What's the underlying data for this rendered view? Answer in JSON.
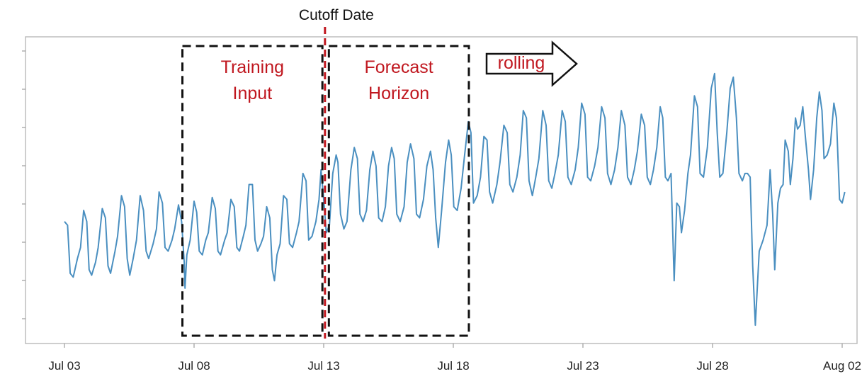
{
  "chart_data": {
    "type": "line",
    "title": "",
    "xlabel": "",
    "ylabel": "",
    "x_ticks": [
      "Jul 03",
      "Jul 08",
      "Jul 13",
      "Jul 18",
      "Jul 23",
      "Jul 28",
      "Aug 02"
    ],
    "x_range": [
      "Jul 03",
      "Aug 02"
    ],
    "y_range": [
      0,
      8
    ],
    "y_tick_labels_shown": false,
    "grid": false,
    "line_color": "#4a8fc0",
    "accent_color": "#c0171f",
    "annotations": {
      "cutoff_label": "Cutoff Date",
      "cutoff_x": 10.05,
      "training_box": {
        "label_line1": "Training",
        "label_line2": "Input",
        "x_start": 4.55,
        "x_end": 9.95
      },
      "forecast_box": {
        "label_line1": "Forecast",
        "label_line2": "Horizon",
        "x_start": 10.2,
        "x_end": 15.6
      },
      "rolling_label": "rolling"
    },
    "series": [
      {
        "values": [
          [
            0.0,
            3.2
          ],
          [
            0.12,
            3.1
          ],
          [
            0.22,
            1.8
          ],
          [
            0.34,
            1.7
          ],
          [
            0.5,
            2.2
          ],
          [
            0.62,
            2.5
          ],
          [
            0.74,
            3.5
          ],
          [
            0.86,
            3.2
          ],
          [
            0.95,
            1.9
          ],
          [
            1.05,
            1.75
          ],
          [
            1.2,
            2.1
          ],
          [
            1.3,
            2.5
          ],
          [
            1.46,
            3.55
          ],
          [
            1.58,
            3.3
          ],
          [
            1.68,
            2.0
          ],
          [
            1.78,
            1.8
          ],
          [
            1.95,
            2.4
          ],
          [
            2.05,
            2.8
          ],
          [
            2.2,
            3.9
          ],
          [
            2.32,
            3.6
          ],
          [
            2.42,
            2.2
          ],
          [
            2.52,
            1.75
          ],
          [
            2.65,
            2.2
          ],
          [
            2.78,
            2.7
          ],
          [
            2.92,
            3.9
          ],
          [
            3.05,
            3.5
          ],
          [
            3.15,
            2.4
          ],
          [
            3.25,
            2.2
          ],
          [
            3.42,
            2.6
          ],
          [
            3.55,
            3.0
          ],
          [
            3.65,
            4.0
          ],
          [
            3.78,
            3.7
          ],
          [
            3.88,
            2.5
          ],
          [
            4.0,
            2.4
          ],
          [
            4.15,
            2.7
          ],
          [
            4.25,
            3.0
          ],
          [
            4.4,
            3.65
          ],
          [
            4.52,
            3.2
          ],
          [
            4.62,
            2.1
          ],
          [
            4.65,
            1.4
          ],
          [
            4.72,
            2.3
          ],
          [
            4.85,
            2.7
          ],
          [
            5.0,
            3.75
          ],
          [
            5.1,
            3.45
          ],
          [
            5.2,
            2.4
          ],
          [
            5.32,
            2.3
          ],
          [
            5.45,
            2.7
          ],
          [
            5.55,
            2.9
          ],
          [
            5.7,
            3.85
          ],
          [
            5.82,
            3.55
          ],
          [
            5.92,
            2.4
          ],
          [
            6.02,
            2.3
          ],
          [
            6.18,
            2.7
          ],
          [
            6.28,
            2.9
          ],
          [
            6.42,
            3.8
          ],
          [
            6.55,
            3.6
          ],
          [
            6.65,
            2.5
          ],
          [
            6.75,
            2.4
          ],
          [
            6.9,
            2.8
          ],
          [
            7.0,
            3.1
          ],
          [
            7.12,
            4.2
          ],
          [
            7.25,
            4.2
          ],
          [
            7.35,
            2.7
          ],
          [
            7.45,
            2.4
          ],
          [
            7.58,
            2.6
          ],
          [
            7.68,
            2.8
          ],
          [
            7.8,
            3.6
          ],
          [
            7.92,
            3.3
          ],
          [
            8.02,
            1.9
          ],
          [
            8.1,
            1.6
          ],
          [
            8.2,
            2.3
          ],
          [
            8.32,
            2.6
          ],
          [
            8.45,
            3.9
          ],
          [
            8.58,
            3.8
          ],
          [
            8.68,
            2.6
          ],
          [
            8.8,
            2.5
          ],
          [
            8.95,
            2.9
          ],
          [
            9.05,
            3.2
          ],
          [
            9.2,
            4.5
          ],
          [
            9.32,
            4.3
          ],
          [
            9.42,
            2.7
          ],
          [
            9.55,
            2.8
          ],
          [
            9.7,
            3.2
          ],
          [
            9.82,
            3.8
          ],
          [
            9.9,
            4.6
          ],
          [
            10.0,
            3.8
          ],
          [
            10.1,
            2.9
          ],
          [
            10.22,
            3.1
          ],
          [
            10.35,
            4.5
          ],
          [
            10.48,
            5.0
          ],
          [
            10.55,
            4.8
          ],
          [
            10.65,
            3.4
          ],
          [
            10.78,
            3.0
          ],
          [
            10.9,
            3.2
          ],
          [
            11.05,
            4.6
          ],
          [
            11.18,
            5.2
          ],
          [
            11.3,
            4.9
          ],
          [
            11.4,
            3.4
          ],
          [
            11.52,
            3.2
          ],
          [
            11.65,
            3.5
          ],
          [
            11.78,
            4.6
          ],
          [
            11.9,
            5.1
          ],
          [
            12.02,
            4.7
          ],
          [
            12.12,
            3.3
          ],
          [
            12.25,
            3.2
          ],
          [
            12.38,
            3.6
          ],
          [
            12.5,
            4.7
          ],
          [
            12.62,
            5.2
          ],
          [
            12.72,
            4.9
          ],
          [
            12.82,
            3.4
          ],
          [
            12.95,
            3.2
          ],
          [
            13.1,
            3.6
          ],
          [
            13.22,
            4.8
          ],
          [
            13.35,
            5.3
          ],
          [
            13.48,
            4.9
          ],
          [
            13.58,
            3.4
          ],
          [
            13.7,
            3.3
          ],
          [
            13.85,
            3.8
          ],
          [
            13.98,
            4.7
          ],
          [
            14.12,
            5.1
          ],
          [
            14.22,
            4.6
          ],
          [
            14.32,
            3.3
          ],
          [
            14.42,
            2.5
          ],
          [
            14.55,
            3.5
          ],
          [
            14.7,
            4.8
          ],
          [
            14.82,
            5.4
          ],
          [
            14.92,
            5.0
          ],
          [
            15.02,
            3.6
          ],
          [
            15.15,
            3.5
          ],
          [
            15.3,
            4.1
          ],
          [
            15.42,
            4.9
          ],
          [
            15.58,
            5.9
          ],
          [
            15.68,
            5.6
          ],
          [
            15.78,
            3.7
          ],
          [
            15.92,
            3.9
          ],
          [
            16.05,
            4.4
          ],
          [
            16.18,
            5.5
          ],
          [
            16.3,
            5.4
          ],
          [
            16.4,
            4.0
          ],
          [
            16.52,
            3.7
          ],
          [
            16.68,
            4.2
          ],
          [
            16.8,
            4.8
          ],
          [
            16.95,
            5.8
          ],
          [
            17.08,
            5.6
          ],
          [
            17.18,
            4.2
          ],
          [
            17.3,
            4.0
          ],
          [
            17.45,
            4.4
          ],
          [
            17.58,
            5.0
          ],
          [
            17.7,
            6.2
          ],
          [
            17.82,
            6.0
          ],
          [
            17.92,
            4.3
          ],
          [
            18.05,
            3.9
          ],
          [
            18.18,
            4.4
          ],
          [
            18.3,
            4.9
          ],
          [
            18.45,
            6.2
          ],
          [
            18.58,
            5.8
          ],
          [
            18.68,
            4.3
          ],
          [
            18.8,
            4.1
          ],
          [
            18.92,
            4.5
          ],
          [
            19.05,
            5.0
          ],
          [
            19.2,
            6.2
          ],
          [
            19.32,
            5.9
          ],
          [
            19.42,
            4.4
          ],
          [
            19.55,
            4.2
          ],
          [
            19.7,
            4.6
          ],
          [
            19.82,
            5.2
          ],
          [
            19.95,
            6.4
          ],
          [
            20.08,
            6.1
          ],
          [
            20.18,
            4.4
          ],
          [
            20.3,
            4.3
          ],
          [
            20.45,
            4.7
          ],
          [
            20.58,
            5.2
          ],
          [
            20.72,
            6.3
          ],
          [
            20.85,
            6.0
          ],
          [
            20.95,
            4.5
          ],
          [
            21.08,
            4.2
          ],
          [
            21.22,
            4.6
          ],
          [
            21.35,
            5.2
          ],
          [
            21.48,
            6.2
          ],
          [
            21.62,
            5.8
          ],
          [
            21.72,
            4.4
          ],
          [
            21.85,
            4.2
          ],
          [
            21.98,
            4.6
          ],
          [
            22.1,
            5.1
          ],
          [
            22.25,
            6.1
          ],
          [
            22.38,
            5.8
          ],
          [
            22.48,
            4.4
          ],
          [
            22.6,
            4.2
          ],
          [
            22.72,
            4.6
          ],
          [
            22.85,
            5.2
          ],
          [
            22.98,
            6.3
          ],
          [
            23.08,
            6.0
          ],
          [
            23.18,
            4.4
          ],
          [
            23.28,
            4.3
          ],
          [
            23.4,
            4.5
          ],
          [
            23.52,
            1.6
          ],
          [
            23.62,
            3.7
          ],
          [
            23.72,
            3.6
          ],
          [
            23.8,
            2.9
          ],
          [
            23.92,
            3.5
          ],
          [
            24.05,
            4.5
          ],
          [
            24.15,
            5.0
          ],
          [
            24.3,
            6.6
          ],
          [
            24.42,
            6.3
          ],
          [
            24.52,
            4.5
          ],
          [
            24.65,
            4.4
          ],
          [
            24.8,
            5.2
          ],
          [
            24.95,
            6.8
          ],
          [
            25.08,
            7.2
          ],
          [
            25.18,
            5.6
          ],
          [
            25.28,
            4.4
          ],
          [
            25.4,
            4.5
          ],
          [
            25.55,
            5.6
          ],
          [
            25.68,
            6.8
          ],
          [
            25.8,
            7.1
          ],
          [
            25.92,
            6.0
          ],
          [
            26.02,
            4.5
          ],
          [
            26.15,
            4.3
          ],
          [
            26.25,
            4.5
          ],
          [
            26.35,
            4.5
          ],
          [
            26.45,
            4.4
          ],
          [
            26.55,
            2.0
          ],
          [
            26.65,
            0.4
          ],
          [
            26.8,
            2.4
          ],
          [
            26.95,
            2.7
          ],
          [
            27.1,
            3.1
          ],
          [
            27.22,
            4.6
          ],
          [
            27.32,
            3.4
          ],
          [
            27.4,
            1.9
          ],
          [
            27.52,
            3.7
          ],
          [
            27.62,
            4.1
          ],
          [
            27.72,
            4.2
          ],
          [
            27.8,
            5.4
          ],
          [
            27.92,
            5.1
          ],
          [
            28.0,
            4.2
          ],
          [
            28.1,
            4.9
          ],
          [
            28.2,
            6.0
          ],
          [
            28.28,
            5.7
          ],
          [
            28.38,
            5.8
          ],
          [
            28.48,
            6.3
          ],
          [
            28.58,
            5.5
          ],
          [
            28.7,
            4.6
          ],
          [
            28.78,
            3.8
          ],
          [
            28.9,
            4.6
          ],
          [
            29.02,
            6.0
          ],
          [
            29.12,
            6.7
          ],
          [
            29.22,
            6.2
          ],
          [
            29.3,
            4.9
          ],
          [
            29.42,
            5.0
          ],
          [
            29.55,
            5.3
          ],
          [
            29.68,
            6.4
          ],
          [
            29.78,
            6.0
          ],
          [
            29.9,
            3.8
          ],
          [
            30.0,
            3.7
          ],
          [
            30.1,
            4.0
          ]
        ]
      }
    ]
  }
}
